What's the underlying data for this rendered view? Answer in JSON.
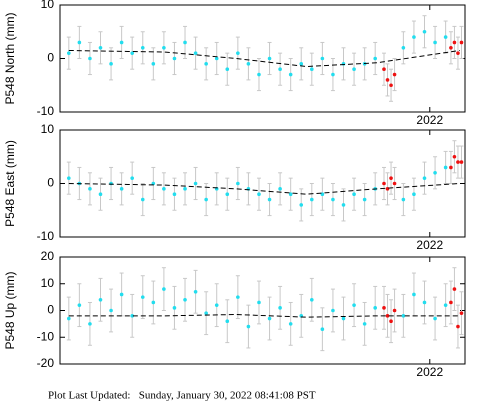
{
  "chart_data": [
    {
      "type": "scatter",
      "ylabel": "P548 North (mm)",
      "xlim": [
        2019.9,
        2022.2
      ],
      "xticks": [
        2022
      ],
      "ylim": [
        -10,
        10
      ],
      "yticks": [
        -10,
        0,
        10
      ],
      "series": [
        {
          "color": "#22ddee",
          "error": 3,
          "x": [
            2019.95,
            2020.01,
            2020.07,
            2020.13,
            2020.19,
            2020.25,
            2020.31,
            2020.37,
            2020.43,
            2020.49,
            2020.55,
            2020.61,
            2020.67,
            2020.73,
            2020.79,
            2020.85,
            2020.91,
            2020.97,
            2021.03,
            2021.09,
            2021.15,
            2021.21,
            2021.27,
            2021.33,
            2021.39,
            2021.45,
            2021.51,
            2021.57,
            2021.63,
            2021.69,
            2021.85,
            2021.91,
            2021.97,
            2022.03,
            2022.09
          ],
          "values": [
            1,
            3,
            0,
            2,
            -1,
            3,
            1,
            2,
            -1,
            2,
            0,
            3,
            1,
            -1,
            0,
            -2,
            1,
            -1,
            -3,
            0,
            -2,
            -3,
            -1,
            -2,
            0,
            -3,
            -1,
            -2,
            -1,
            0,
            2,
            4,
            5,
            3,
            4
          ]
        },
        {
          "color": "#ee1111",
          "error": 3,
          "x": [
            2021.74,
            2021.76,
            2021.78,
            2021.8,
            2022.12,
            2022.14,
            2022.16,
            2022.18
          ],
          "values": [
            -2,
            -4,
            -5,
            -3,
            2,
            3,
            1,
            3
          ]
        },
        {
          "color": "#000000",
          "line_style": "dashed",
          "x": [
            2019.95,
            2020.5,
            2020.9,
            2021.3,
            2021.7,
            2022.17
          ],
          "values": [
            1.5,
            1.2,
            0,
            -1.5,
            -0.8,
            1.5
          ]
        }
      ]
    },
    {
      "type": "scatter",
      "ylabel": "P548 East (mm)",
      "xlim": [
        2019.9,
        2022.2
      ],
      "xticks": [
        2022
      ],
      "ylim": [
        -10,
        10
      ],
      "yticks": [
        -10,
        0,
        10
      ],
      "series": [
        {
          "color": "#22ddee",
          "error": 3,
          "x": [
            2019.95,
            2020.01,
            2020.07,
            2020.13,
            2020.19,
            2020.25,
            2020.31,
            2020.37,
            2020.43,
            2020.49,
            2020.55,
            2020.61,
            2020.67,
            2020.73,
            2020.79,
            2020.85,
            2020.91,
            2020.97,
            2021.03,
            2021.09,
            2021.15,
            2021.21,
            2021.27,
            2021.33,
            2021.39,
            2021.45,
            2021.51,
            2021.57,
            2021.63,
            2021.69,
            2021.85,
            2021.91,
            2021.97,
            2022.03,
            2022.09
          ],
          "values": [
            1,
            0,
            -1,
            -2,
            0,
            -1,
            1,
            -3,
            0,
            -1,
            -2,
            -1,
            0,
            -3,
            -1,
            -2,
            0,
            -1,
            -2,
            -3,
            -1,
            -2,
            -4,
            -3,
            -2,
            -3,
            -4,
            -2,
            -3,
            -1,
            -3,
            -2,
            1,
            2,
            3
          ]
        },
        {
          "color": "#ee1111",
          "error": 3,
          "x": [
            2021.74,
            2021.76,
            2021.78,
            2021.8,
            2022.12,
            2022.14,
            2022.16,
            2022.18
          ],
          "values": [
            0,
            -1,
            1,
            0,
            3,
            5,
            4,
            4
          ]
        },
        {
          "color": "#000000",
          "line_style": "dashed",
          "x": [
            2019.95,
            2020.5,
            2020.9,
            2021.3,
            2021.7,
            2022.17
          ],
          "values": [
            0,
            -0.3,
            -1,
            -2,
            -1,
            0
          ]
        }
      ]
    },
    {
      "type": "scatter",
      "ylabel": "P548 Up (mm)",
      "xlim": [
        2019.9,
        2022.2
      ],
      "xticks": [
        2022
      ],
      "ylim": [
        -20,
        20
      ],
      "yticks": [
        -20,
        -10,
        0,
        10,
        20
      ],
      "series": [
        {
          "color": "#22ddee",
          "error": 8,
          "x": [
            2019.95,
            2020.01,
            2020.07,
            2020.13,
            2020.19,
            2020.25,
            2020.31,
            2020.37,
            2020.43,
            2020.49,
            2020.55,
            2020.61,
            2020.67,
            2020.73,
            2020.79,
            2020.85,
            2020.91,
            2020.97,
            2021.03,
            2021.09,
            2021.15,
            2021.21,
            2021.27,
            2021.33,
            2021.39,
            2021.45,
            2021.51,
            2021.57,
            2021.63,
            2021.69,
            2021.85,
            2021.91,
            2021.97,
            2022.03,
            2022.09
          ],
          "values": [
            -3,
            2,
            -5,
            4,
            0,
            6,
            -2,
            5,
            3,
            8,
            1,
            4,
            7,
            -1,
            2,
            -4,
            5,
            -6,
            3,
            -3,
            1,
            -5,
            -2,
            4,
            -7,
            0,
            -3,
            2,
            -5,
            1,
            -2,
            6,
            3,
            -3,
            2
          ]
        },
        {
          "color": "#ee1111",
          "error": 8,
          "x": [
            2021.74,
            2021.76,
            2021.78,
            2021.8,
            2022.12,
            2022.14,
            2022.16,
            2022.18
          ],
          "values": [
            1,
            -2,
            -4,
            0,
            3,
            8,
            -6,
            -1
          ]
        },
        {
          "color": "#000000",
          "line_style": "dashed",
          "x": [
            2019.95,
            2020.5,
            2020.9,
            2021.3,
            2021.7,
            2022.17
          ],
          "values": [
            -2,
            -2,
            -1.5,
            -2.5,
            -2,
            -2
          ]
        }
      ]
    }
  ],
  "footer": "Plot Last Updated:   Sunday, January 30, 2022 08:41:08 PST"
}
